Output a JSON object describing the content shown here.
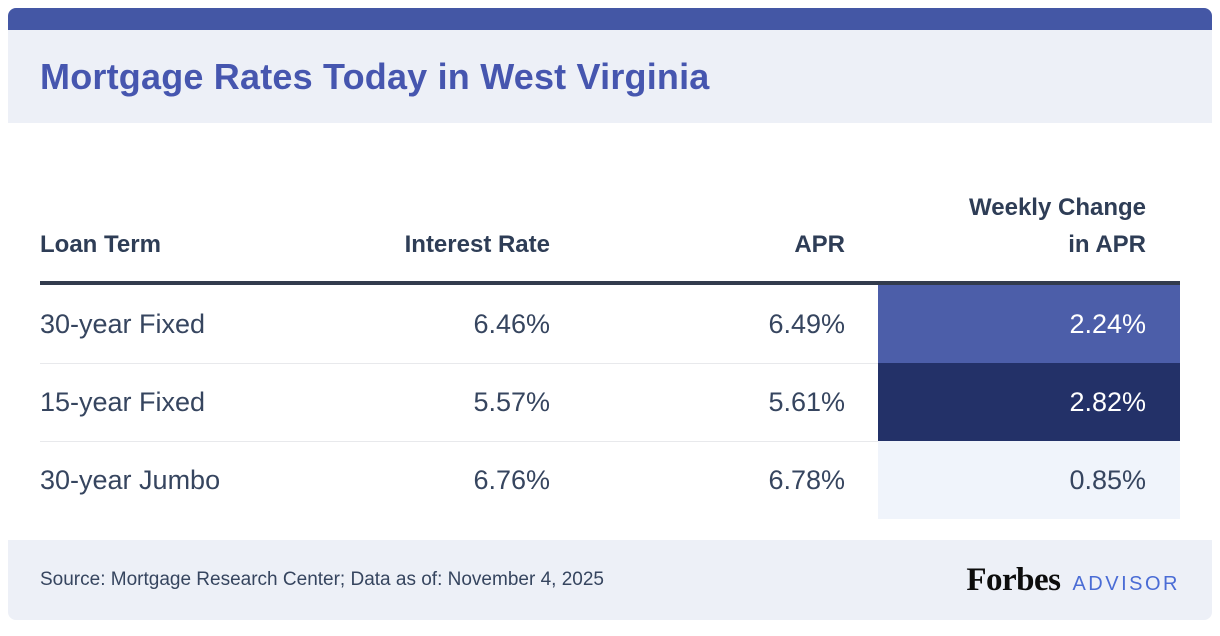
{
  "header": {
    "title": "Mortgage Rates Today in West Virginia"
  },
  "table": {
    "columns": [
      "Loan Term",
      "Interest Rate",
      "APR",
      "Weekly Change in APR"
    ],
    "rows": [
      {
        "loan_term": "30-year Fixed",
        "interest_rate": "6.46%",
        "apr": "6.49%",
        "weekly_change": "2.24%"
      },
      {
        "loan_term": "15-year Fixed",
        "interest_rate": "5.57%",
        "apr": "5.61%",
        "weekly_change": "2.82%"
      },
      {
        "loan_term": "30-year Jumbo",
        "interest_rate": "6.76%",
        "apr": "6.78%",
        "weekly_change": "0.85%"
      }
    ]
  },
  "chart_data": {
    "type": "table",
    "title": "Mortgage Rates Today in West Virginia",
    "columns": [
      "Loan Term",
      "Interest Rate",
      "APR",
      "Weekly Change in APR"
    ],
    "rows": [
      [
        "30-year Fixed",
        "6.46%",
        "6.49%",
        "2.24%"
      ],
      [
        "15-year Fixed",
        "5.57%",
        "5.61%",
        "2.82%"
      ],
      [
        "30-year Jumbo",
        "6.76%",
        "6.78%",
        "0.85%"
      ]
    ],
    "weekly_change_cell_colors": [
      "#4c5ea9",
      "#233168",
      "#f0f4fb"
    ]
  },
  "footer": {
    "source": "Source: Mortgage Research Center; Data as of: November 4, 2025",
    "brand": "Forbes",
    "brand_suffix": "ADVISOR"
  },
  "colors": {
    "accent_bar": "#4457a5",
    "title_text": "#4656af",
    "band_background": "#edf0f7",
    "body_text": "#36455f",
    "header_rule": "#323b4d",
    "advisor_text": "#4a6cd5"
  }
}
